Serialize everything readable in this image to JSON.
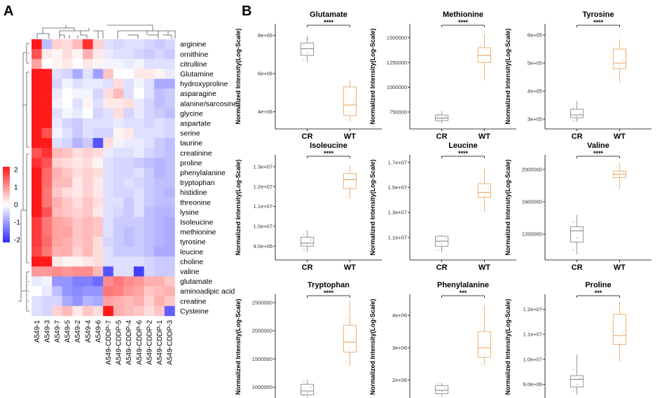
{
  "panel_a": {
    "label": "A",
    "heatmap": {
      "type": "heatmap",
      "rows": [
        "arginine",
        "ornithine",
        "citrulline",
        "Glutamine",
        "hydroxyproline",
        "asparagine",
        "alanine/sarcosine",
        "glycine",
        "aspartate",
        "serine",
        "taurine",
        "creatinine",
        "proline",
        "phenylalanine",
        "tryptophan",
        "histidine",
        "threonine",
        "lysine",
        "Isoleucine",
        "methionine",
        "tyrosine",
        "leucine",
        "choline",
        "valine",
        "glutamate",
        "aminoadipic acid",
        "creatine",
        "Cysteine"
      ],
      "columns": [
        "A549-1",
        "A549-3",
        "A549-7",
        "A549-5",
        "A549-2",
        "A549-4",
        "A549-6",
        "A549-CDDP-7",
        "A549-CDDP-5",
        "A549-CDDP-4",
        "A549-CDDP-6",
        "A549-CDDP-2",
        "A549-CDDP-1",
        "A549-CDDP-3"
      ],
      "values": [
        [
          2.2,
          -0.6,
          0.4,
          0.3,
          0.6,
          1.8,
          0.4,
          -0.3,
          -0.4,
          -0.3,
          -0.3,
          -0.4,
          -0.5,
          -0.4
        ],
        [
          1.5,
          0.2,
          0.1,
          0.3,
          0.1,
          0.7,
          0.2,
          -0.2,
          -0.3,
          -0.3,
          -0.4,
          -0.5,
          -0.4,
          -0.5
        ],
        [
          0.8,
          0.0,
          0.1,
          0.2,
          0.0,
          0.2,
          0.1,
          -0.1,
          -0.1,
          -0.2,
          -0.1,
          -0.3,
          -0.3,
          -0.3
        ],
        [
          2.0,
          2.0,
          -0.3,
          -0.4,
          -0.8,
          -0.3,
          -0.9,
          0.5,
          0.0,
          0.0,
          0.2,
          0.2,
          0.1,
          -0.2
        ],
        [
          2.2,
          2.3,
          -0.4,
          -0.1,
          -0.3,
          -0.2,
          -0.2,
          -0.3,
          0.3,
          -0.3,
          -0.1,
          -0.3,
          -0.8,
          -0.8
        ],
        [
          2.3,
          2.5,
          -0.2,
          0.0,
          -0.1,
          -0.1,
          -0.4,
          0.3,
          0.6,
          -0.3,
          0.0,
          -0.3,
          -0.6,
          -0.5
        ],
        [
          2.3,
          2.5,
          -0.1,
          0.0,
          -0.3,
          0.1,
          -0.3,
          0.2,
          0.2,
          0.3,
          -0.2,
          -0.4,
          -0.6,
          -0.5
        ],
        [
          2.3,
          2.4,
          -0.3,
          -0.1,
          -0.2,
          0.0,
          -0.4,
          -0.3,
          0.3,
          -0.4,
          -0.2,
          -0.4,
          -0.5,
          -0.6
        ],
        [
          2.3,
          2.4,
          -0.2,
          -0.4,
          -0.5,
          -0.3,
          -0.3,
          -0.3,
          -0.2,
          -0.3,
          -0.3,
          -0.4,
          -0.3,
          -0.4
        ],
        [
          2.2,
          1.5,
          -0.1,
          -0.3,
          -0.5,
          -0.3,
          -0.4,
          -0.4,
          0.1,
          0.2,
          -0.3,
          -0.3,
          -0.3,
          -0.4
        ],
        [
          2.2,
          2.3,
          -0.3,
          -0.4,
          -0.7,
          -0.5,
          -1.6,
          0.3,
          -0.1,
          -0.2,
          -0.2,
          -0.3,
          -0.5,
          -0.6
        ],
        [
          1.5,
          1.8,
          0.6,
          0.5,
          0.3,
          0.4,
          0.3,
          -0.2,
          -0.3,
          -0.3,
          -0.2,
          -0.4,
          -0.5,
          -0.6
        ],
        [
          1.8,
          1.5,
          0.4,
          0.3,
          0.2,
          0.3,
          0.1,
          -0.3,
          -0.4,
          -0.4,
          -0.5,
          -0.6,
          -0.7,
          -0.6
        ],
        [
          2.0,
          1.3,
          0.7,
          0.5,
          0.3,
          0.4,
          0.3,
          -0.3,
          -0.4,
          -0.4,
          -0.3,
          -0.5,
          -0.7,
          -0.6
        ],
        [
          2.2,
          1.3,
          0.6,
          0.6,
          0.2,
          0.4,
          0.2,
          -0.3,
          -0.4,
          -0.3,
          -0.4,
          -0.5,
          -0.6,
          -0.6
        ],
        [
          2.2,
          1.2,
          0.5,
          0.3,
          0.2,
          0.4,
          0.2,
          -0.3,
          -0.4,
          -0.4,
          -0.3,
          -0.5,
          -0.6,
          -0.7
        ],
        [
          2.3,
          1.2,
          0.7,
          0.5,
          0.3,
          0.5,
          0.3,
          -0.3,
          -0.3,
          -0.5,
          -0.3,
          -0.5,
          -0.6,
          -0.6
        ],
        [
          2.3,
          1.5,
          0.6,
          0.5,
          0.4,
          0.5,
          0.2,
          -0.3,
          -0.4,
          -0.5,
          -0.3,
          -0.6,
          -0.7,
          -0.7
        ],
        [
          1.7,
          1.2,
          0.8,
          0.7,
          0.5,
          0.6,
          0.5,
          -0.3,
          -0.5,
          -0.5,
          -0.5,
          -0.6,
          -0.7,
          -0.8
        ],
        [
          1.7,
          1.2,
          0.8,
          0.8,
          0.5,
          0.6,
          0.5,
          -0.3,
          -0.5,
          -0.6,
          -0.5,
          -0.6,
          -0.7,
          -0.8
        ],
        [
          1.7,
          1.3,
          0.8,
          0.7,
          0.5,
          0.6,
          0.3,
          -0.4,
          -0.5,
          -0.6,
          -0.5,
          -0.6,
          -0.7,
          -0.8
        ],
        [
          1.6,
          1.2,
          0.7,
          0.7,
          0.4,
          0.6,
          0.3,
          -0.3,
          -0.5,
          -0.5,
          -0.5,
          -0.6,
          -0.8,
          -0.8
        ],
        [
          2.4,
          2.3,
          0.2,
          0.1,
          0.1,
          0.2,
          0.3,
          -0.3,
          -0.3,
          -0.3,
          -0.3,
          -0.4,
          -0.5,
          -0.5
        ],
        [
          0.9,
          0.9,
          1.0,
          0.9,
          1.0,
          1.0,
          0.6,
          -1.6,
          -0.3,
          -0.3,
          -1.8,
          -0.4,
          -0.5,
          -0.5
        ],
        [
          -0.2,
          -0.1,
          -1.0,
          -1.0,
          -1.2,
          -1.2,
          -1.4,
          1.0,
          1.2,
          1.0,
          0.9,
          0.7,
          0.7,
          0.5
        ],
        [
          0.0,
          -0.2,
          -0.6,
          -1.0,
          -1.1,
          -1.0,
          -1.0,
          1.2,
          1.1,
          0.9,
          0.8,
          0.5,
          0.6,
          0.7
        ],
        [
          -0.3,
          -0.4,
          -0.4,
          -0.8,
          -1.0,
          -0.7,
          -0.8,
          0.8,
          0.7,
          0.6,
          0.7,
          0.4,
          0.7,
          0.5
        ],
        [
          -0.3,
          -0.4,
          0.4,
          0.6,
          0.2,
          0.5,
          0.3,
          2.4,
          0.7,
          0.6,
          0.5,
          0.3,
          0.5,
          -1.5
        ]
      ],
      "color_scale": {
        "low": "#2b2bff",
        "mid": "#ffffff",
        "high": "#ff1a1a",
        "range": [
          -2,
          2
        ]
      },
      "legend_ticks": [
        "2",
        "1",
        "0",
        "-1",
        "-2"
      ]
    }
  },
  "panel_b": {
    "label": "B",
    "ylabel": "Normalized Intensity(Log-Scale)",
    "group_colors": {
      "CR": "#8a8a8a",
      "WT": "#e8a86a"
    },
    "chart_data": [
      {
        "type": "box",
        "title": "Glutamate",
        "significance": "****",
        "ylim": [
          3100000.0,
          8600000.0
        ],
        "yticks": [
          {
            "v": 4000000,
            "label": "4e+06"
          },
          {
            "v": 6000000,
            "label": "6e+06"
          },
          {
            "v": 8000000,
            "label": "8e+06"
          }
        ],
        "groups": [
          {
            "name": "CR",
            "min": 6600000.0,
            "q1": 6950000.0,
            "median": 7300000.0,
            "q3": 7600000.0,
            "max": 7950000.0,
            "points": [
              6700000.0,
              7100000.0,
              7300000.0,
              7500000.0,
              7800000.0
            ]
          },
          {
            "name": "WT",
            "min": 3500000.0,
            "q1": 3800000.0,
            "median": 4350000.0,
            "q3": 5300000.0,
            "max": 5650000.0,
            "points": [
              3600000.0,
              4000000.0,
              4500000.0,
              5000000.0,
              5500000.0
            ]
          }
        ]
      },
      {
        "type": "box",
        "title": "Methionine",
        "significance": "****",
        "ylim": [
          580000,
          1640000
        ],
        "yticks": [
          {
            "v": 750000,
            "label": "750000"
          },
          {
            "v": 1000000,
            "label": "1000000"
          },
          {
            "v": 1250000,
            "label": "1250000"
          },
          {
            "v": 1500000,
            "label": "1500000"
          }
        ],
        "groups": [
          {
            "name": "CR",
            "min": 640000,
            "q1": 665000,
            "median": 690000,
            "q3": 720000,
            "max": 760000,
            "points": [
              650000,
              680000,
              700000,
              730000
            ]
          },
          {
            "name": "WT",
            "min": 1070000,
            "q1": 1250000,
            "median": 1320000,
            "q3": 1400000,
            "max": 1540000,
            "points": [
              1100000,
              1260000,
              1330000,
              1420000,
              1500000
            ]
          }
        ]
      },
      {
        "type": "box",
        "title": "Tyrosine",
        "significance": "****",
        "ylim": [
          265000,
          640000
        ],
        "yticks": [
          {
            "v": 300000,
            "label": "3e+05"
          },
          {
            "v": 400000,
            "label": "4e+05"
          },
          {
            "v": 500000,
            "label": "5e+05"
          },
          {
            "v": 600000,
            "label": "6e+05"
          }
        ],
        "groups": [
          {
            "name": "CR",
            "min": 290000,
            "q1": 305000,
            "median": 315000,
            "q3": 335000,
            "max": 365000,
            "points": [
              295000,
              310000,
              320000,
              340000
            ]
          },
          {
            "name": "WT",
            "min": 430000,
            "q1": 480000,
            "median": 500000,
            "q3": 550000,
            "max": 585000,
            "points": [
              440000,
              490000,
              510000,
              560000,
              580000
            ]
          }
        ]
      },
      {
        "type": "box",
        "title": "Isoleucine",
        "significance": "****",
        "ylim": [
          8300000,
          13600000
        ],
        "yticks": [
          {
            "v": 9000000,
            "label": "9.0e+06"
          },
          {
            "v": 10000000,
            "label": "1.0e+07"
          },
          {
            "v": 11000000,
            "label": "1.1e+07"
          },
          {
            "v": 12000000,
            "label": "1.2e+07"
          },
          {
            "v": 13000000,
            "label": "1.3e+07"
          }
        ],
        "groups": [
          {
            "name": "CR",
            "min": 8700000,
            "q1": 9000000,
            "median": 9150000,
            "q3": 9450000,
            "max": 9800000,
            "points": [
              8800000,
              9100000,
              9300000,
              9600000
            ]
          },
          {
            "name": "WT",
            "min": 11400000,
            "q1": 11900000,
            "median": 12350000,
            "q3": 12650000,
            "max": 13050000,
            "points": [
              11500000,
              12000000,
              12400000,
              12800000
            ]
          }
        ]
      },
      {
        "type": "box",
        "title": "Leucine",
        "significance": "****",
        "ylim": [
          9200000,
          17600000
        ],
        "yticks": [
          {
            "v": 11000000,
            "label": "1.1e+07"
          },
          {
            "v": 13000000,
            "label": "1.3e+07"
          },
          {
            "v": 15000000,
            "label": "1.5e+07"
          },
          {
            "v": 17000000,
            "label": "1.7e+07"
          }
        ],
        "groups": [
          {
            "name": "CR",
            "min": 9800000,
            "q1": 10300000,
            "median": 10700000,
            "q3": 11100000,
            "max": 11200000,
            "points": [
              10000000,
              10500000,
              10900000
            ]
          },
          {
            "name": "WT",
            "min": 13000000,
            "q1": 14200000,
            "median": 14600000,
            "q3": 15300000,
            "max": 16500000,
            "points": [
              13200000,
              14300000,
              14800000,
              15500000,
              16200000
            ]
          }
        ]
      },
      {
        "type": "box",
        "title": "Valine",
        "significance": "****",
        "ylim": [
          880000,
          2180000
        ],
        "yticks": [
          {
            "v": 1200000,
            "label": "1200000"
          },
          {
            "v": 1600000,
            "label": "1600000"
          },
          {
            "v": 2000000,
            "label": "2000000"
          }
        ],
        "groups": [
          {
            "name": "CR",
            "min": 950000,
            "q1": 1100000,
            "median": 1240000,
            "q3": 1290000,
            "max": 1440000,
            "points": [
              1000000,
              1150000,
              1250000,
              1350000
            ]
          },
          {
            "name": "WT",
            "min": 1760000,
            "q1": 1900000,
            "median": 1940000,
            "q3": 1980000,
            "max": 2080000,
            "points": [
              1800000,
              1920000,
              1960000,
              2040000
            ]
          }
        ]
      },
      {
        "type": "box",
        "title": "Tryptophan",
        "significance": "****",
        "ylim": [
          780000,
          2650000
        ],
        "yticks": [
          {
            "v": 1000000,
            "label": "1000000"
          },
          {
            "v": 1500000,
            "label": "1500000"
          },
          {
            "v": 2000000,
            "label": "2000000"
          },
          {
            "v": 2500000,
            "label": "2500000"
          }
        ],
        "groups": [
          {
            "name": "CR",
            "min": 820000,
            "q1": 860000,
            "median": 930000,
            "q3": 1050000,
            "max": 1130000,
            "points": [
              850000,
              900000,
              1000000,
              1100000
            ]
          },
          {
            "name": "WT",
            "min": 1380000,
            "q1": 1620000,
            "median": 1800000,
            "q3": 2100000,
            "max": 2540000,
            "points": [
              1450000,
              1700000,
              1850000,
              2200000,
              2450000
            ]
          }
        ]
      },
      {
        "type": "box",
        "title": "Phenylalanine",
        "significance": "***",
        "ylim": [
          1400000,
          4650000
        ],
        "yticks": [
          {
            "v": 2000000,
            "label": "2e+06"
          },
          {
            "v": 3000000,
            "label": "3e+06"
          },
          {
            "v": 4000000,
            "label": "4e+06"
          }
        ],
        "groups": [
          {
            "name": "CR",
            "min": 1500000,
            "q1": 1580000,
            "median": 1680000,
            "q3": 1830000,
            "max": 1920000,
            "points": [
              1550000,
              1650000,
              1750000,
              1880000
            ]
          },
          {
            "name": "WT",
            "min": 2450000,
            "q1": 2700000,
            "median": 3000000,
            "q3": 3500000,
            "max": 4300000,
            "points": [
              2500000,
              2800000,
              3100000,
              3700000,
              4100000
            ]
          }
        ]
      },
      {
        "type": "box",
        "title": "Proline",
        "significance": "***",
        "ylim": [
          8400000,
          12600000
        ],
        "yticks": [
          {
            "v": 9000000,
            "label": "9.0e+06"
          },
          {
            "v": 10000000,
            "label": "1.0e+07"
          },
          {
            "v": 11000000,
            "label": "1.1e+07"
          },
          {
            "v": 12000000,
            "label": "1.2e+07"
          }
        ],
        "groups": [
          {
            "name": "CR",
            "min": 8600000,
            "q1": 8900000,
            "median": 9200000,
            "q3": 9350000,
            "max": 10200000,
            "points": [
              8700000,
              9000000,
              9250000,
              9600000
            ]
          },
          {
            "name": "WT",
            "min": 9900000,
            "q1": 10600000,
            "median": 10950000,
            "q3": 11800000,
            "max": 12300000,
            "points": [
              10000000,
              10700000,
              11100000,
              11900000,
              12200000
            ]
          }
        ]
      }
    ]
  }
}
